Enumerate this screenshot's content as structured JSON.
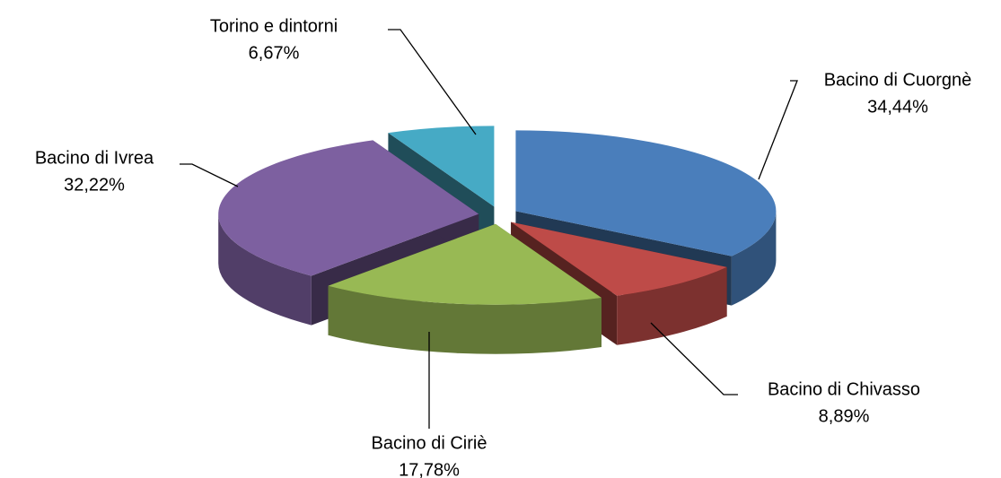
{
  "chart_data": {
    "type": "pie3d",
    "categories": [
      "Bacino di Cuorgnè",
      "Bacino di Chivasso",
      "Bacino di Ciriè",
      "Bacino di Ivrea",
      "Torino e dintorni"
    ],
    "values": [
      34.44,
      8.89,
      17.78,
      32.22,
      6.67
    ],
    "value_labels": [
      "34,44%",
      "8,89%",
      "17,78%",
      "32,22%",
      "6,67%"
    ],
    "colors": [
      "#4a7ebb",
      "#be4b48",
      "#98b954",
      "#7d60a0",
      "#46aac5"
    ]
  }
}
